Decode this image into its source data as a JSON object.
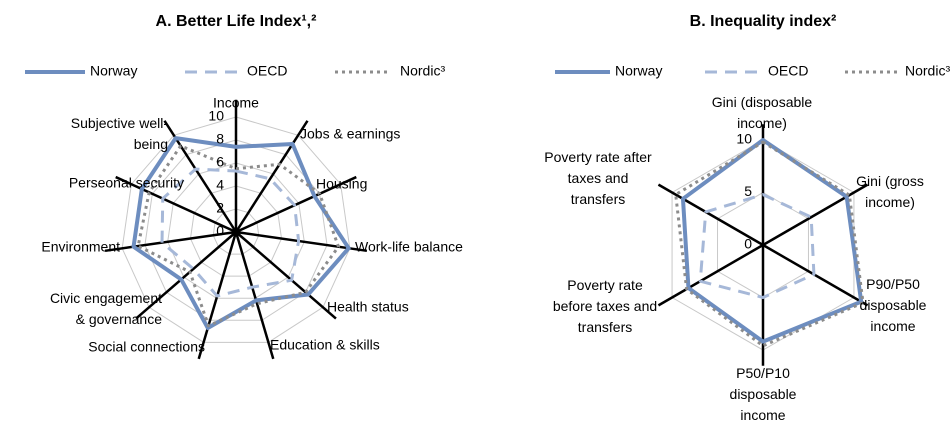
{
  "chart_data": [
    {
      "type": "radar",
      "title": "A. Better Life Index¹,²",
      "categories": [
        "Income",
        "Jobs & earnings",
        "Housing",
        "Work-life balance",
        "Health status",
        "Education & skills",
        "Social connections",
        "Civic engagement\n& governance",
        "Environment",
        "Perseonal security",
        "Subjective well-\nbeing"
      ],
      "series": [
        {
          "name": "Norway",
          "color": "#6d8dbf",
          "values": [
            7.4,
            9.1,
            7.5,
            9.9,
            8.3,
            6.2,
            8.7,
            6.3,
            9,
            9,
            9.7
          ]
        },
        {
          "name": "OECD",
          "color": "#a6b8d8",
          "values": [
            5.3,
            5.5,
            5.6,
            5.5,
            6.4,
            5,
            5.8,
            4.9,
            6.5,
            7,
            6.5
          ]
        },
        {
          "name": "Nordic³",
          "color": "#8c8c8c",
          "values": [
            5.5,
            7,
            8,
            9,
            8,
            6.5,
            8.5,
            5.3,
            8.6,
            8.3,
            8.9
          ]
        }
      ],
      "ylim": [
        0,
        10
      ],
      "yticks": [
        0,
        2,
        4,
        6,
        8,
        10
      ],
      "grid": true
    },
    {
      "type": "radar",
      "title": "B. Inequality index²",
      "categories": [
        "Gini (disposable\nincome)",
        "Gini (gross\nincome)",
        "P90/P50\ndisposable\nincome",
        "P50/P10\ndisposable\nincome",
        "Poverty rate\nbefore taxes and\ntransfers",
        "Poverty rate after\ntaxes and\ntransfers"
      ],
      "series": [
        {
          "name": "Norway",
          "color": "#6d8dbf",
          "values": [
            10,
            9.2,
            10.8,
            9.2,
            8.2,
            8.8
          ]
        },
        {
          "name": "OECD",
          "color": "#a6b8d8",
          "values": [
            4.8,
            5.3,
            5.6,
            5,
            6.9,
            6.3
          ]
        },
        {
          "name": "Nordic³",
          "color": "#8c8c8c",
          "values": [
            9.8,
            9.5,
            11,
            9.6,
            8.4,
            9.6
          ]
        }
      ],
      "ylim": [
        0,
        10
      ],
      "yticks": [
        0,
        5,
        10
      ],
      "grid": true
    }
  ]
}
